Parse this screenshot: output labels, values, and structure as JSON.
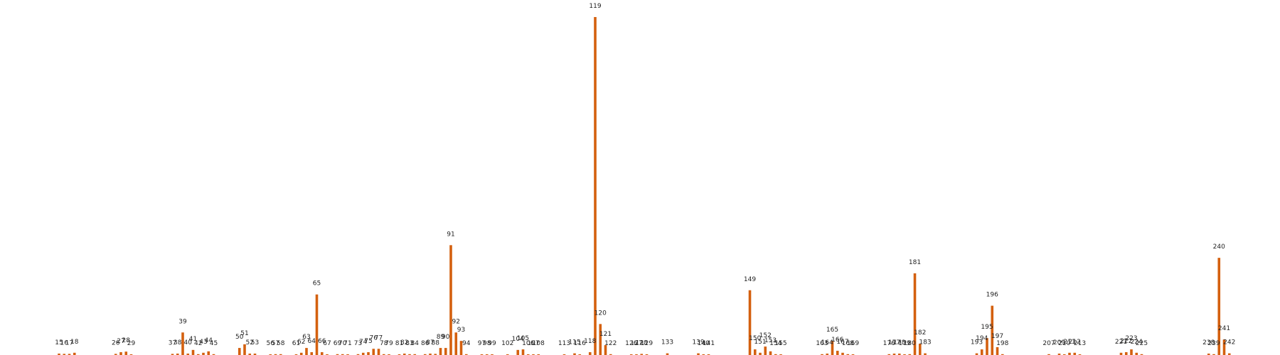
{
  "chart_data": {
    "type": "bar",
    "title": "",
    "xlabel": "",
    "ylabel": "",
    "bar_color": "#d4600f",
    "grid": false,
    "legend": "none",
    "ylim": [
      0,
      120
    ],
    "bars": [
      {
        "label": "15",
        "x": 15,
        "value": 0.5
      },
      {
        "label": "16",
        "x": 16,
        "value": 0.4
      },
      {
        "label": "17",
        "x": 17,
        "value": 0.4
      },
      {
        "label": "18",
        "x": 18,
        "value": 0.8
      },
      {
        "label": "26",
        "x": 26,
        "value": 0.4
      },
      {
        "label": "27",
        "x": 27,
        "value": 1.0
      },
      {
        "label": "28",
        "x": 28,
        "value": 1.2
      },
      {
        "label": "29",
        "x": 29,
        "value": 0.2
      },
      {
        "label": "37",
        "x": 37,
        "value": 0.4
      },
      {
        "label": "38",
        "x": 38,
        "value": 0.5
      },
      {
        "label": "39",
        "x": 39,
        "value": 8.0
      },
      {
        "label": "40",
        "x": 40,
        "value": 0.5
      },
      {
        "label": "41",
        "x": 41,
        "value": 1.8
      },
      {
        "label": "42",
        "x": 42,
        "value": 0.3
      },
      {
        "label": "43",
        "x": 43,
        "value": 0.8
      },
      {
        "label": "44",
        "x": 44,
        "value": 1.3
      },
      {
        "label": "45",
        "x": 45,
        "value": 0.3
      },
      {
        "label": "50",
        "x": 50,
        "value": 2.5
      },
      {
        "label": "51",
        "x": 51,
        "value": 3.8
      },
      {
        "label": "52",
        "x": 52,
        "value": 0.5
      },
      {
        "label": "53",
        "x": 53,
        "value": 0.5
      },
      {
        "label": "56",
        "x": 56,
        "value": 0.2
      },
      {
        "label": "57",
        "x": 57,
        "value": 0.3
      },
      {
        "label": "58",
        "x": 58,
        "value": 0.3
      },
      {
        "label": "61",
        "x": 61,
        "value": 0.2
      },
      {
        "label": "62",
        "x": 62,
        "value": 0.8
      },
      {
        "label": "63",
        "x": 63,
        "value": 2.5
      },
      {
        "label": "64",
        "x": 64,
        "value": 1.0
      },
      {
        "label": "65",
        "x": 65,
        "value": 21.5
      },
      {
        "label": "66",
        "x": 66,
        "value": 1.0
      },
      {
        "label": "67",
        "x": 67,
        "value": 0.2
      },
      {
        "label": "69",
        "x": 69,
        "value": 0.3
      },
      {
        "label": "70",
        "x": 70,
        "value": 0.3
      },
      {
        "label": "71",
        "x": 71,
        "value": 0.2
      },
      {
        "label": "73",
        "x": 73,
        "value": 0.3
      },
      {
        "label": "74",
        "x": 74,
        "value": 0.8
      },
      {
        "label": "75",
        "x": 75,
        "value": 1.0
      },
      {
        "label": "76",
        "x": 76,
        "value": 2.2
      },
      {
        "label": "77",
        "x": 77,
        "value": 2.2
      },
      {
        "label": "78",
        "x": 78,
        "value": 0.3
      },
      {
        "label": "79",
        "x": 79,
        "value": 0.2
      },
      {
        "label": "81",
        "x": 81,
        "value": 0.2
      },
      {
        "label": "82",
        "x": 82,
        "value": 0.5
      },
      {
        "label": "83",
        "x": 83,
        "value": 0.3
      },
      {
        "label": "84",
        "x": 84,
        "value": 0.3
      },
      {
        "label": "86",
        "x": 86,
        "value": 0.3
      },
      {
        "label": "87",
        "x": 87,
        "value": 0.5
      },
      {
        "label": "88",
        "x": 88,
        "value": 0.4
      },
      {
        "label": "89",
        "x": 89,
        "value": 2.5
      },
      {
        "label": "90",
        "x": 90,
        "value": 2.5
      },
      {
        "label": "91",
        "x": 91,
        "value": 39.0
      },
      {
        "label": "92",
        "x": 92,
        "value": 8.0
      },
      {
        "label": "93",
        "x": 93,
        "value": 5.0
      },
      {
        "label": "94",
        "x": 94,
        "value": 0.3
      },
      {
        "label": "97",
        "x": 97,
        "value": 0.2
      },
      {
        "label": "98",
        "x": 98,
        "value": 0.2
      },
      {
        "label": "99",
        "x": 99,
        "value": 0.2
      },
      {
        "label": "102",
        "x": 102,
        "value": 0.2
      },
      {
        "label": "104",
        "x": 104,
        "value": 1.8
      },
      {
        "label": "105",
        "x": 105,
        "value": 2.0
      },
      {
        "label": "106",
        "x": 106,
        "value": 0.2
      },
      {
        "label": "107",
        "x": 107,
        "value": 0.2
      },
      {
        "label": "108",
        "x": 108,
        "value": 0.2
      },
      {
        "label": "113",
        "x": 113,
        "value": 0.2
      },
      {
        "label": "115",
        "x": 115,
        "value": 0.6
      },
      {
        "label": "116",
        "x": 116,
        "value": 0.2
      },
      {
        "label": "118",
        "x": 118,
        "value": 1.0
      },
      {
        "label": "119",
        "x": 119,
        "value": 120.0
      },
      {
        "label": "120",
        "x": 120,
        "value": 11.0
      },
      {
        "label": "121",
        "x": 121,
        "value": 3.5
      },
      {
        "label": "122",
        "x": 122,
        "value": 0.3
      },
      {
        "label": "126",
        "x": 126,
        "value": 0.2
      },
      {
        "label": "127",
        "x": 127,
        "value": 0.2
      },
      {
        "label": "128",
        "x": 128,
        "value": 0.4
      },
      {
        "label": "129",
        "x": 129,
        "value": 0.2
      },
      {
        "label": "133",
        "x": 133,
        "value": 0.6
      },
      {
        "label": "139",
        "x": 139,
        "value": 0.6
      },
      {
        "label": "140",
        "x": 140,
        "value": 0.2
      },
      {
        "label": "141",
        "x": 141,
        "value": 0.2
      },
      {
        "label": "149",
        "x": 149,
        "value": 23.0
      },
      {
        "label": "150",
        "x": 150,
        "value": 2.0
      },
      {
        "label": "151",
        "x": 151,
        "value": 0.8
      },
      {
        "label": "152",
        "x": 152,
        "value": 3.0
      },
      {
        "label": "153",
        "x": 153,
        "value": 1.3
      },
      {
        "label": "154",
        "x": 154,
        "value": 0.3
      },
      {
        "label": "155",
        "x": 155,
        "value": 0.2
      },
      {
        "label": "163",
        "x": 163,
        "value": 0.3
      },
      {
        "label": "164",
        "x": 164,
        "value": 0.5
      },
      {
        "label": "165",
        "x": 165,
        "value": 5.0
      },
      {
        "label": "166",
        "x": 166,
        "value": 1.5
      },
      {
        "label": "167",
        "x": 167,
        "value": 0.8
      },
      {
        "label": "168",
        "x": 168,
        "value": 0.3
      },
      {
        "label": "169",
        "x": 169,
        "value": 0.2
      },
      {
        "label": "176",
        "x": 176,
        "value": 0.3
      },
      {
        "label": "177",
        "x": 177,
        "value": 0.5
      },
      {
        "label": "178",
        "x": 178,
        "value": 0.5
      },
      {
        "label": "179",
        "x": 179,
        "value": 0.2
      },
      {
        "label": "180",
        "x": 180,
        "value": 0.3
      },
      {
        "label": "181",
        "x": 181,
        "value": 29.0
      },
      {
        "label": "182",
        "x": 182,
        "value": 4.0
      },
      {
        "label": "183",
        "x": 183,
        "value": 0.6
      },
      {
        "label": "193",
        "x": 193,
        "value": 0.6
      },
      {
        "label": "194",
        "x": 194,
        "value": 2.0
      },
      {
        "label": "195",
        "x": 195,
        "value": 6.0
      },
      {
        "label": "196",
        "x": 196,
        "value": 17.5
      },
      {
        "label": "197",
        "x": 197,
        "value": 2.8
      },
      {
        "label": "198",
        "x": 198,
        "value": 0.3
      },
      {
        "label": "207",
        "x": 207,
        "value": 0.3
      },
      {
        "label": "209",
        "x": 209,
        "value": 0.5
      },
      {
        "label": "210",
        "x": 210,
        "value": 0.2
      },
      {
        "label": "211",
        "x": 211,
        "value": 0.8
      },
      {
        "label": "212",
        "x": 212,
        "value": 0.8
      },
      {
        "label": "213",
        "x": 213,
        "value": 0.2
      },
      {
        "label": "221",
        "x": 221,
        "value": 0.8
      },
      {
        "label": "222",
        "x": 222,
        "value": 1.0
      },
      {
        "label": "223",
        "x": 223,
        "value": 2.0
      },
      {
        "label": "224",
        "x": 224,
        "value": 0.8
      },
      {
        "label": "225",
        "x": 225,
        "value": 0.3
      },
      {
        "label": "238",
        "x": 238,
        "value": 0.5
      },
      {
        "label": "239",
        "x": 239,
        "value": 0.3
      },
      {
        "label": "240",
        "x": 240,
        "value": 34.5
      },
      {
        "label": "241",
        "x": 241,
        "value": 5.5
      },
      {
        "label": "242",
        "x": 242,
        "value": 0.6
      }
    ]
  }
}
